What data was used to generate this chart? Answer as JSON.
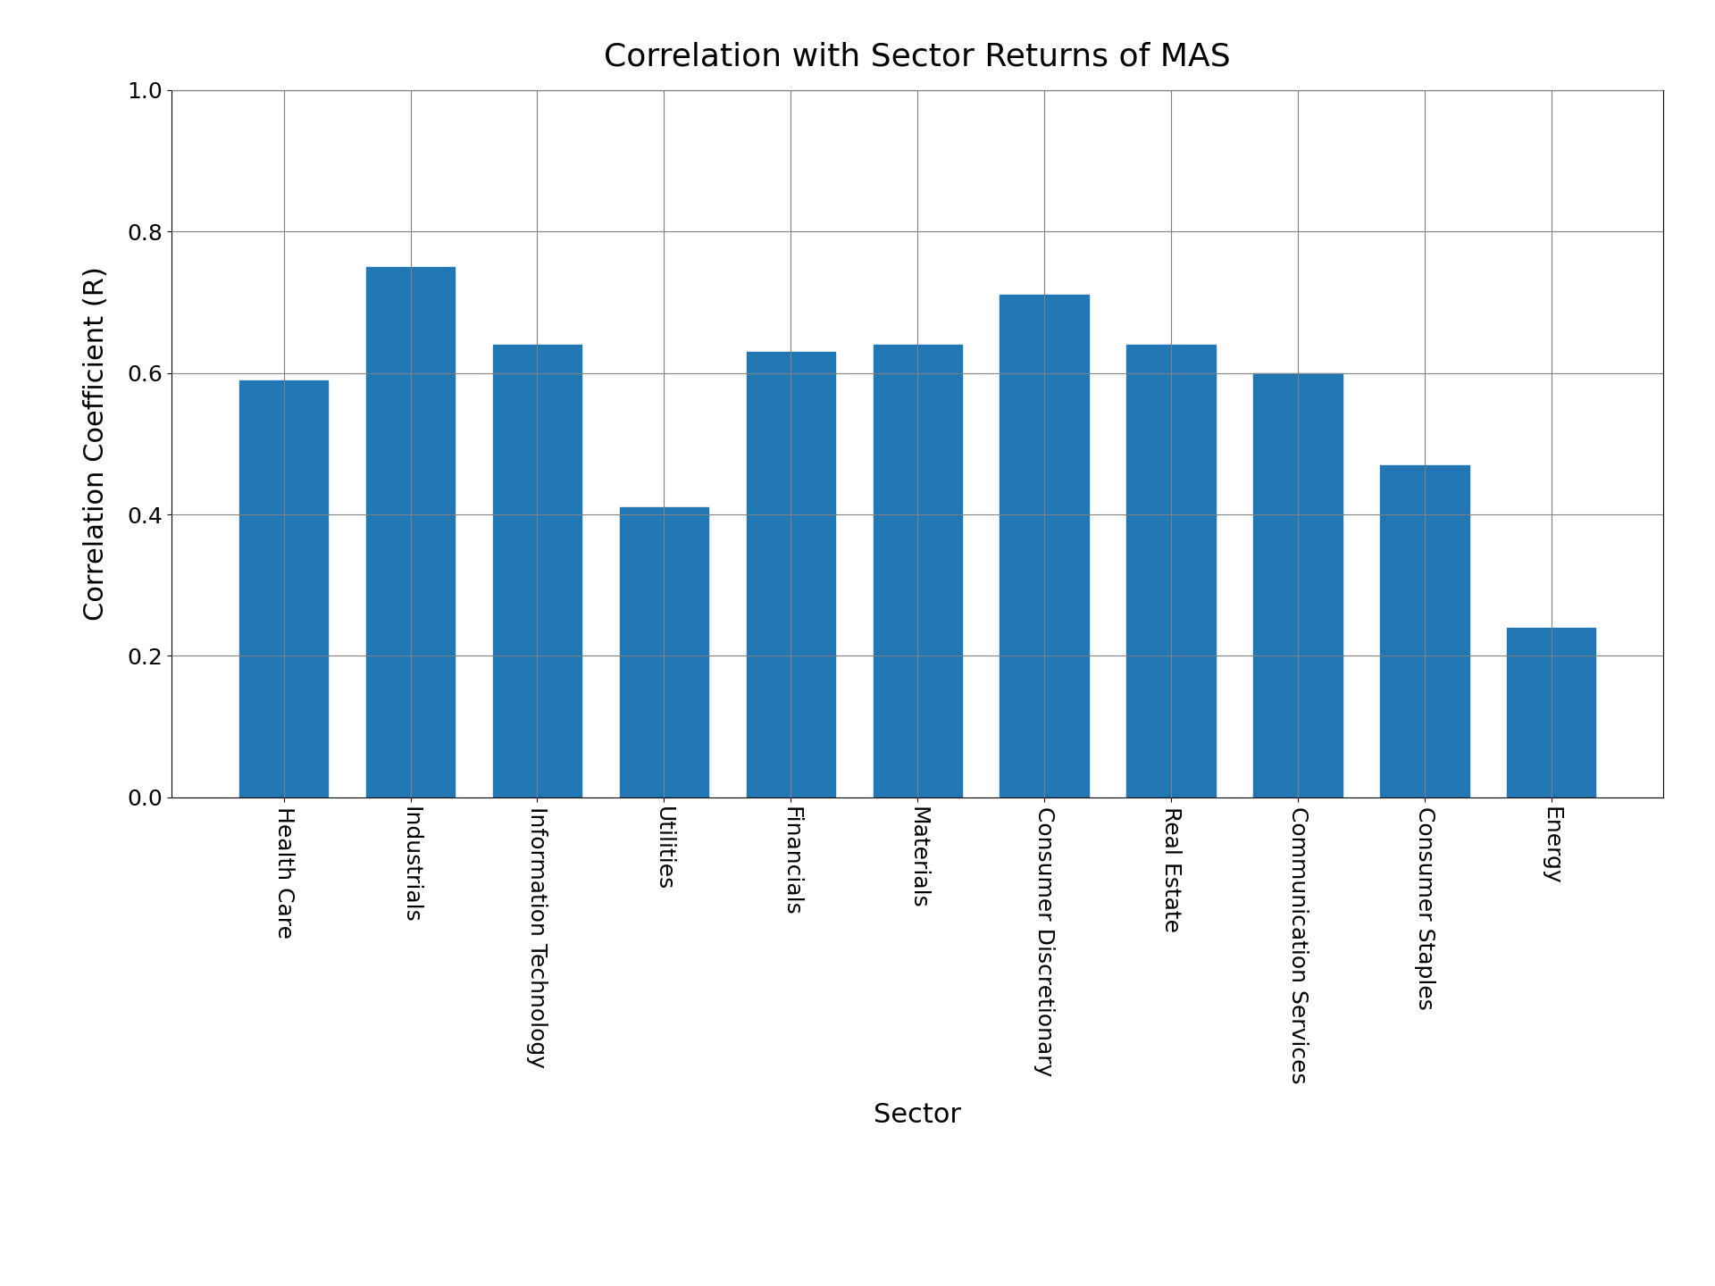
{
  "title": "Correlation with Sector Returns of MAS",
  "xlabel": "Sector",
  "ylabel": "Correlation Coefficient (R)",
  "categories": [
    "Health Care",
    "Industrials",
    "Information Technology",
    "Utilities",
    "Financials",
    "Materials",
    "Consumer Discretionary",
    "Real Estate",
    "Communication Services",
    "Consumer Staples",
    "Energy"
  ],
  "values": [
    0.59,
    0.75,
    0.64,
    0.41,
    0.63,
    0.64,
    0.71,
    0.64,
    0.6,
    0.47,
    0.24
  ],
  "bar_color": "#2077b4",
  "ylim": [
    0.0,
    1.0
  ],
  "yticks": [
    0.0,
    0.2,
    0.4,
    0.6,
    0.8,
    1.0
  ],
  "title_fontsize": 26,
  "label_fontsize": 22,
  "tick_fontsize": 18,
  "background_color": "#ffffff",
  "grid": true,
  "bar_width": 0.7,
  "label_rotation": 270,
  "label_ha": "center"
}
